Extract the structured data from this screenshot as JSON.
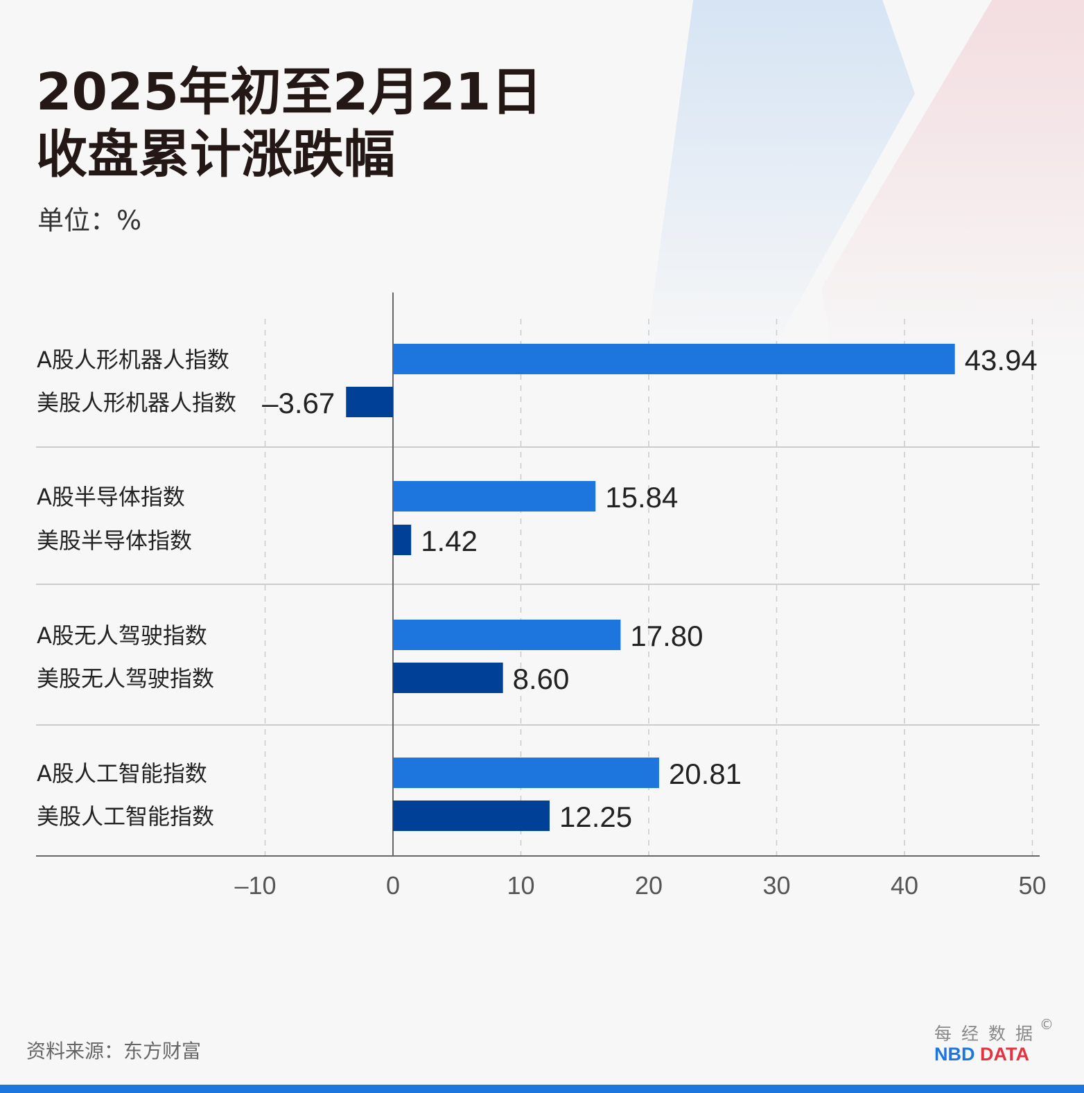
{
  "chart_data": {
    "type": "bar",
    "orientation": "horizontal",
    "title": "2025年初至2月21日收盘累计涨跌幅",
    "title_lines": [
      "2025年初至2月21日",
      "收盘累计涨跌幅"
    ],
    "unit": "单位：%",
    "categories": [
      "A股人形机器人指数",
      "美股人形机器人指数",
      "A股半导体指数",
      "美股半导体指数",
      "A股无人驾驶指数",
      "美股无人驾驶指数",
      "A股人工智能指数",
      "美股人工智能指数"
    ],
    "values": [
      43.94,
      -3.67,
      15.84,
      1.42,
      17.8,
      8.6,
      20.81,
      12.25
    ],
    "value_labels": [
      "43.94",
      "–3.67",
      "15.84",
      "1.42",
      "17.80",
      "8.60",
      "20.81",
      "12.25"
    ],
    "xlim": [
      -10,
      50
    ],
    "xticks": [
      "–10",
      "0",
      "10",
      "20",
      "30",
      "40",
      "50"
    ],
    "xtick_values": [
      -10,
      0,
      10,
      20,
      30,
      40,
      50
    ],
    "grid": "vertical dashed",
    "colors": {
      "a_share": "#1d75de",
      "us_share": "#004097"
    }
  },
  "footer": {
    "source": "资料来源：东方财富",
    "logo_cn": "每经数据",
    "logo_en_1": "NBD",
    "logo_en_2": "DATA",
    "copyright": "©",
    "logo_colors": {
      "nbd": "#1d75de",
      "data": "#e53140"
    }
  }
}
